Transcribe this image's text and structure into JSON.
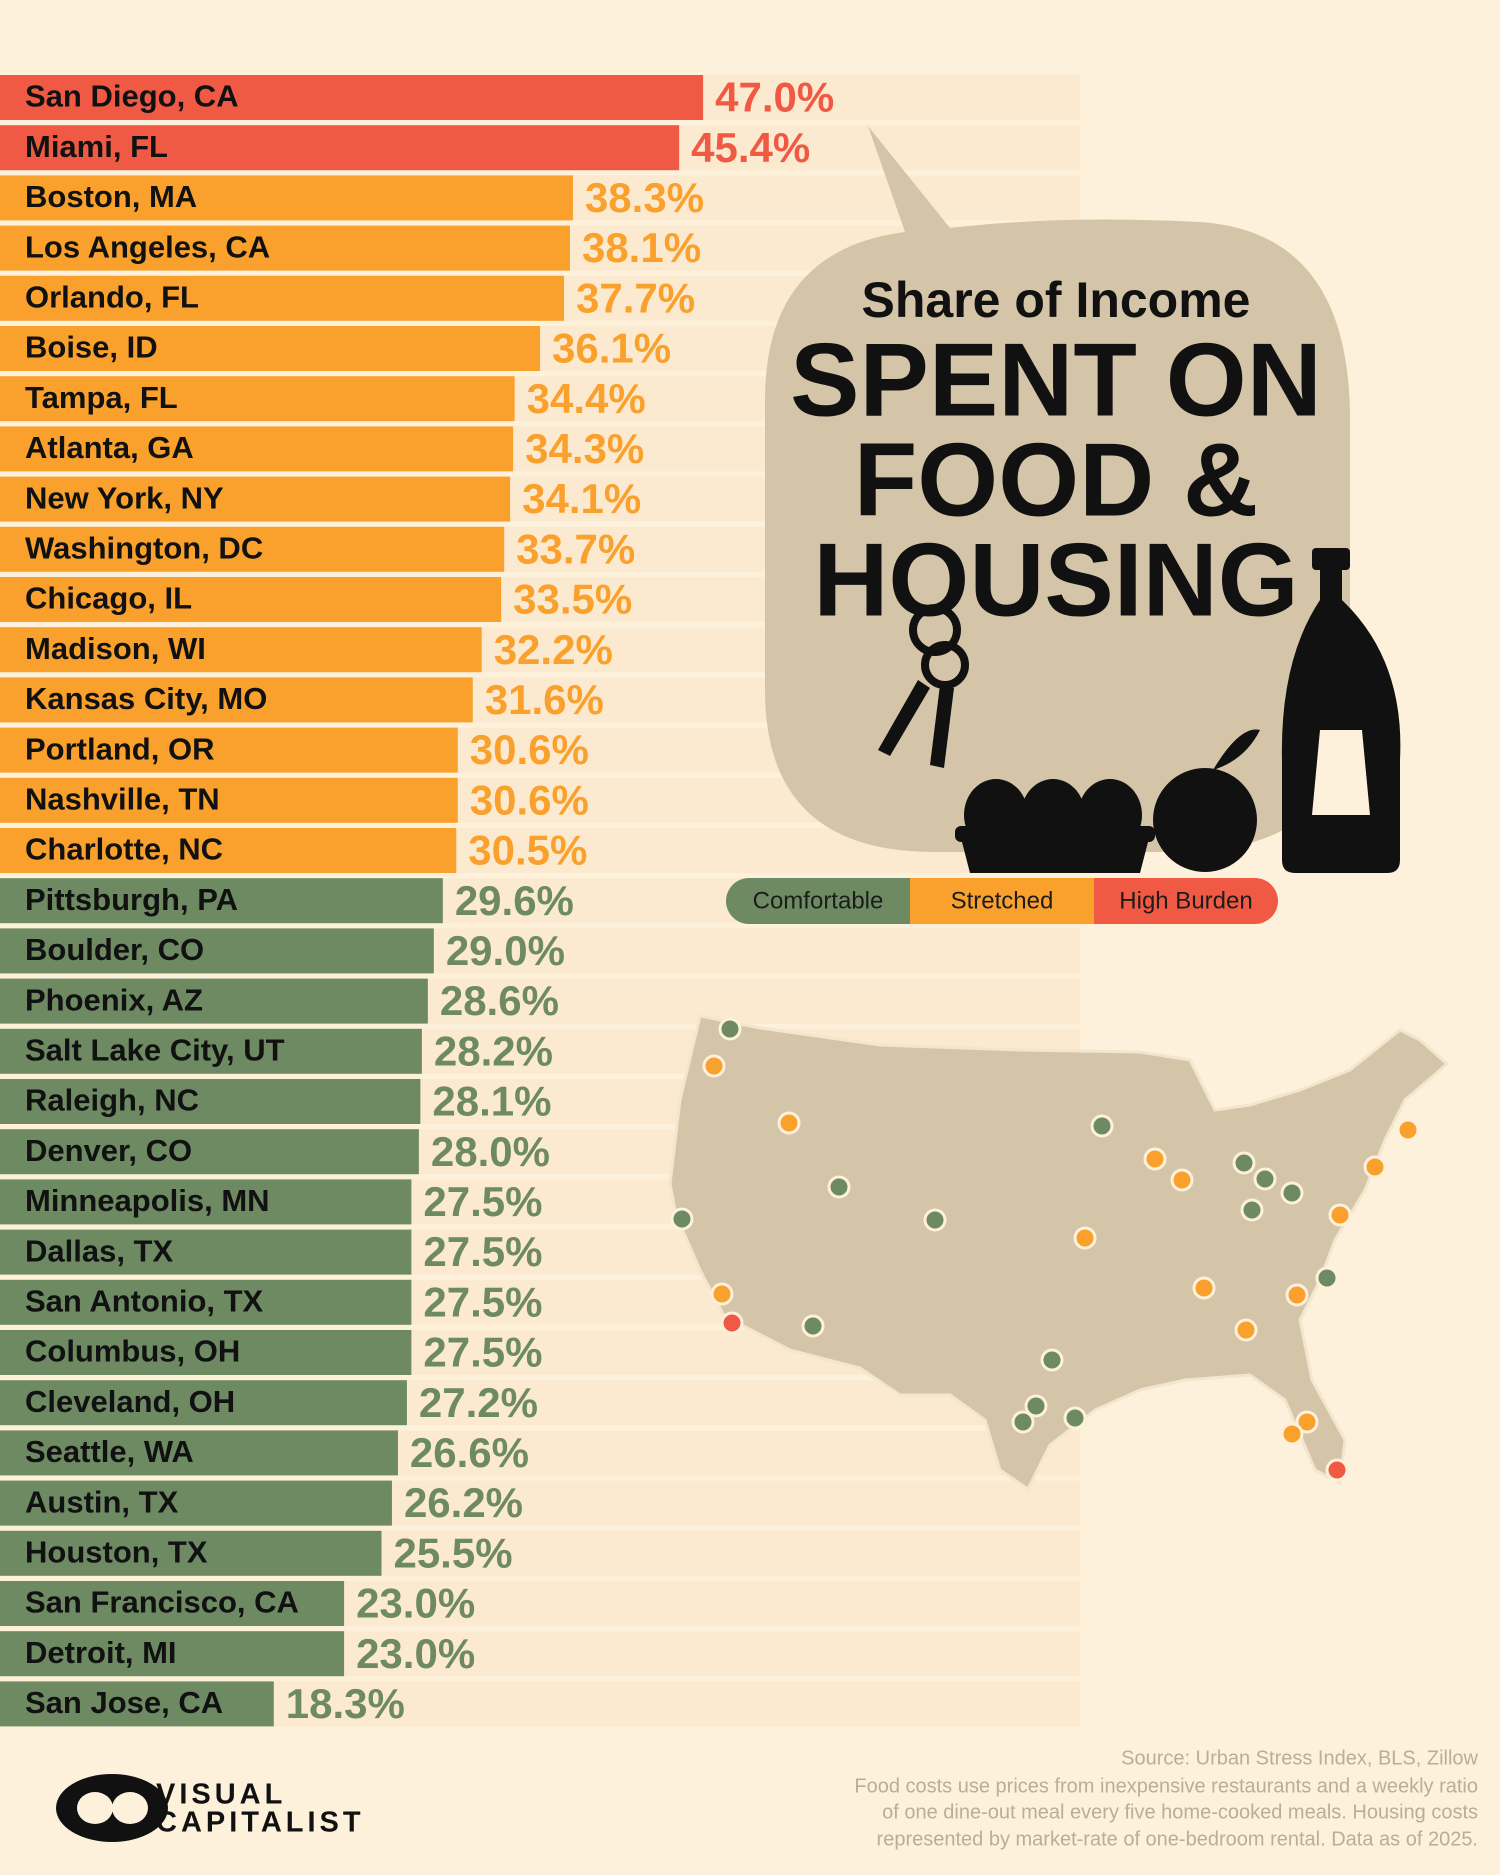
{
  "chart_data": {
    "type": "bar",
    "title": "Share of Income",
    "title_lines": [
      "SPENT ON",
      "FOOD &",
      "HOUSING"
    ],
    "categories": [
      "San Diego, CA",
      "Miami, FL",
      "Boston, MA",
      "Los Angeles, CA",
      "Orlando, FL",
      "Boise, ID",
      "Tampa, FL",
      "Atlanta, GA",
      "New York, NY",
      "Washington, DC",
      "Chicago, IL",
      "Madison, WI",
      "Kansas City, MO",
      "Portland, OR",
      "Nashville, TN",
      "Charlotte, NC",
      "Pittsburgh, PA",
      "Boulder, CO",
      "Phoenix, AZ",
      "Salt Lake City, UT",
      "Raleigh, NC",
      "Denver, CO",
      "Minneapolis, MN",
      "Dallas, TX",
      "San Antonio, TX",
      "Columbus, OH",
      "Cleveland, OH",
      "Seattle, WA",
      "Austin, TX",
      "Houston, TX",
      "San Francisco, CA",
      "Detroit, MI",
      "San Jose, CA"
    ],
    "series": [
      {
        "name": "Comfortable",
        "color": "#6d8a62",
        "values": [
          null,
          null,
          null,
          null,
          null,
          null,
          null,
          null,
          null,
          null,
          null,
          null,
          null,
          null,
          null,
          null,
          29.6,
          29.0,
          28.6,
          28.2,
          28.1,
          28.0,
          27.5,
          27.5,
          27.5,
          27.5,
          27.2,
          26.6,
          26.2,
          25.5,
          23.0,
          23.0,
          18.3
        ],
        "value_labels": [
          null,
          null,
          null,
          null,
          null,
          null,
          null,
          null,
          null,
          null,
          null,
          null,
          null,
          null,
          null,
          null,
          "29.6%",
          "29.0%",
          "28.6%",
          "28.2%",
          "28.1%",
          "28.0%",
          "27.5%",
          "27.5%",
          "27.5%",
          "27.5%",
          "27.2%",
          "26.6%",
          "26.2%",
          "25.5%",
          "23.0%",
          "23.0%",
          "18.3%"
        ]
      },
      {
        "name": "Stretched",
        "color": "#f9a12c",
        "values": [
          null,
          null,
          38.3,
          38.1,
          37.7,
          36.1,
          34.4,
          34.3,
          34.1,
          33.7,
          33.5,
          32.2,
          31.6,
          30.6,
          30.6,
          30.5,
          null,
          null,
          null,
          null,
          null,
          null,
          null,
          null,
          null,
          null,
          null,
          null,
          null,
          null,
          null,
          null,
          null
        ],
        "value_labels": [
          null,
          null,
          "38.3%",
          "38.1%",
          "37.7%",
          "36.1%",
          "34.4%",
          "34.3%",
          "34.1%",
          "33.7%",
          "33.5%",
          "32.2%",
          "31.6%",
          "30.6%",
          "30.6%",
          "30.5%",
          null,
          null,
          null,
          null,
          null,
          null,
          null,
          null,
          null,
          null,
          null,
          null,
          null,
          null,
          null,
          null,
          null
        ]
      },
      {
        "name": "High Burden",
        "color": "#f05a44",
        "values": [
          47.0,
          45.4,
          null,
          null,
          null,
          null,
          null,
          null,
          null,
          null,
          null,
          null,
          null,
          null,
          null,
          null,
          null,
          null,
          null,
          null,
          null,
          null,
          null,
          null,
          null,
          null,
          null,
          null,
          null,
          null,
          null,
          null,
          null
        ],
        "value_labels": [
          "47.0%",
          "45.4%",
          null,
          null,
          null,
          null,
          null,
          null,
          null,
          null,
          null,
          null,
          null,
          null,
          null,
          null,
          null,
          null,
          null,
          null,
          null,
          null,
          null,
          null,
          null,
          null,
          null,
          null,
          null,
          null,
          null,
          null,
          null
        ]
      }
    ],
    "source": "Source: Urban Stress Index, BLS, Zillow",
    "notes": [
      "Food costs use prices from inexpensive restaurants and a weekly ratio",
      "of one dine-out meal every five home-cooked meals. Housing costs",
      "represented by market-rate of one-bedroom rental. Data as of 2025."
    ],
    "logo": [
      "VISUAL",
      "CAPITALIST"
    ]
  }
}
